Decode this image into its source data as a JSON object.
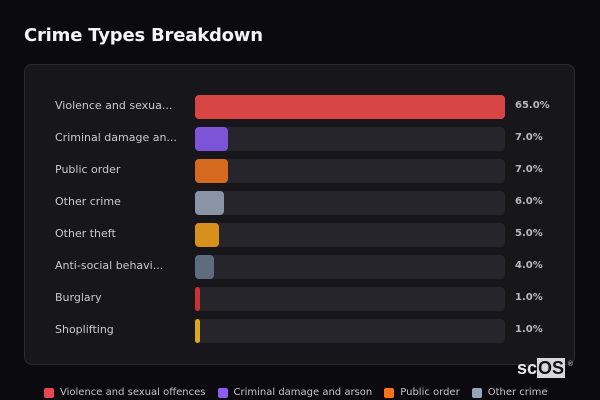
{
  "title": "Crime Types Breakdown",
  "chart_data": {
    "type": "bar",
    "orientation": "horizontal",
    "title": "Crime Types Breakdown",
    "xlabel": "",
    "ylabel": "",
    "xlim": [
      0,
      65
    ],
    "categories": [
      "Violence and sexua...",
      "Criminal damage an...",
      "Public order",
      "Other crime",
      "Other theft",
      "Anti-social behavi...",
      "Burglary",
      "Shoplifting"
    ],
    "values": [
      65.0,
      7.0,
      7.0,
      6.0,
      5.0,
      4.0,
      1.0,
      1.0
    ],
    "value_labels": [
      "65.0%",
      "7.0%",
      "7.0%",
      "6.0%",
      "5.0%",
      "4.0%",
      "1.0%",
      "1.0%"
    ],
    "colors": [
      "#d84545",
      "#7b55d6",
      "#d56a1f",
      "#8a94a6",
      "#d8901c",
      "#5f6b7e",
      "#c83232",
      "#d9a81c"
    ],
    "legend": [
      "Violence and sexual offences",
      "Criminal damage and arson",
      "Public order",
      "Other crime"
    ],
    "legend_position": "bottom",
    "grid": false
  },
  "legend": [
    {
      "label": "Violence and sexual offences",
      "color": "#e8474f"
    },
    {
      "label": "Criminal damage and arson",
      "color": "#8b5cf6"
    },
    {
      "label": "Public order",
      "color": "#f97316"
    },
    {
      "label": "Other crime",
      "color": "#94a3b8"
    }
  ],
  "logo": {
    "prefix": "sc",
    "highlight": "OS",
    "mark": "®"
  }
}
